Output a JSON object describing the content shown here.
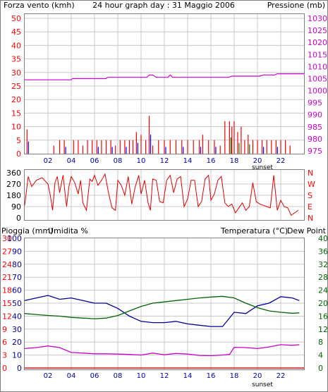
{
  "colors": {
    "wind": "#ff0000",
    "gust_fill": "#0000ff",
    "gust_green": "#008000",
    "pressure": "#cc00cc",
    "direction": "#dd0000",
    "rain": "#ff0000",
    "humidity": "#000099",
    "temperature": "#006600",
    "dewpoint": "#cc00cc",
    "grid": "#c8c8c8",
    "frame": "#808080",
    "label_red": "#ff0000",
    "label_magenta": "#cc00cc",
    "label_dark": "#000000",
    "label_navy": "#000099",
    "label_green": "#006600"
  },
  "chart_data": [
    {
      "type": "bar",
      "title": "24 hour graph day : 31 Maggio 2006",
      "left_label": "Forza vento (kmh)",
      "right_label": "Pressione (mb)",
      "x_ticks": [
        "02",
        "04",
        "06",
        "08",
        "10",
        "12",
        "14",
        "16",
        "18",
        "20",
        "22"
      ],
      "x_note": "sunset",
      "y_left_ticks": [
        50,
        45,
        40,
        35,
        30,
        25,
        20,
        15,
        10,
        5,
        0
      ],
      "y_right_ticks": [
        1030,
        1025,
        1020,
        1015,
        1010,
        1005,
        1000,
        995,
        990,
        985,
        980,
        975
      ],
      "ylim_left": [
        0,
        50
      ],
      "ylim_right": [
        975,
        1030
      ],
      "series": [
        {
          "name": "Forza vento",
          "x_hours": [
            0.2,
            2.5,
            3.0,
            3.4,
            4.2,
            4.6,
            5.0,
            5.4,
            5.8,
            6.2,
            6.6,
            7.0,
            7.4,
            7.8,
            8.2,
            8.6,
            9.0,
            9.3,
            9.6,
            10.0,
            10.4,
            10.7,
            11.0,
            11.5,
            12.0,
            12.5,
            13.0,
            13.5,
            14.0,
            14.5,
            15.0,
            15.3,
            15.8,
            16.3,
            16.8,
            17.2,
            17.6,
            17.8,
            18.0,
            18.3,
            18.6,
            18.9,
            19.2,
            19.6,
            20.0,
            20.4,
            20.8,
            21.2,
            21.6,
            22.0,
            22.4,
            22.8
          ],
          "values": [
            9,
            3,
            5,
            5,
            5,
            5,
            3,
            5,
            5,
            5,
            5,
            5,
            5,
            3,
            5,
            5,
            5,
            5,
            8,
            7,
            5,
            14,
            3,
            5,
            5,
            5,
            5,
            5,
            5,
            5,
            5,
            7,
            5,
            5,
            3,
            12,
            12,
            10,
            12,
            8,
            10,
            5,
            7,
            5,
            5,
            5,
            5,
            5,
            5,
            5,
            5,
            3
          ]
        },
        {
          "name": "Pressione",
          "x_hours": [
            0,
            4,
            4.1,
            7,
            7.1,
            10.5,
            10.7,
            11,
            11.3,
            12.3,
            12.5,
            12.7,
            17.5,
            17.8,
            20.2,
            20.5,
            21.5,
            21.7,
            24
          ],
          "values": [
            1004.5,
            1004.5,
            1005,
            1005,
            1005.5,
            1005.5,
            1006.5,
            1006.5,
            1005.5,
            1005.5,
            1006.5,
            1005.5,
            1005.5,
            1006,
            1006,
            1006.5,
            1006.5,
            1007,
            1007
          ]
        }
      ]
    },
    {
      "type": "line",
      "y_left_ticks": [
        360,
        270,
        180,
        90,
        0
      ],
      "y_right_ticks": [
        "N",
        "W",
        "S",
        "E",
        "N"
      ],
      "ylim": [
        0,
        360
      ],
      "series": [
        {
          "name": "Direzione vento",
          "x_hours": [
            0,
            0.3,
            0.6,
            1.0,
            1.5,
            2.0,
            2.2,
            2.4,
            2.6,
            2.8,
            3.0,
            3.3,
            3.6,
            3.8,
            4.0,
            4.3,
            4.6,
            4.8,
            5.0,
            5.3,
            5.6,
            5.8,
            6.0,
            6.3,
            6.6,
            6.9,
            7.2,
            7.5,
            7.8,
            8.0,
            8.3,
            8.6,
            8.9,
            9.2,
            9.5,
            9.8,
            10.0,
            10.3,
            10.6,
            10.8,
            11.0,
            11.3,
            11.6,
            11.9,
            12.2,
            12.5,
            12.8,
            13.1,
            13.4,
            13.7,
            14.0,
            14.3,
            14.6,
            14.9,
            15.2,
            15.5,
            15.8,
            16.0,
            16.3,
            16.6,
            16.9,
            17.2,
            17.5,
            17.8,
            18.1,
            18.4,
            18.7,
            19.0,
            19.3,
            19.6,
            19.9,
            20.2,
            20.5,
            20.8,
            21.1,
            21.4,
            21.7,
            22.0,
            22.3,
            22.6,
            22.9,
            23.2,
            23.5
          ],
          "values": [
            100,
            330,
            250,
            300,
            320,
            270,
            180,
            60,
            280,
            330,
            200,
            340,
            90,
            250,
            330,
            280,
            190,
            300,
            120,
            60,
            310,
            290,
            340,
            260,
            300,
            350,
            200,
            80,
            60,
            300,
            260,
            180,
            330,
            110,
            250,
            340,
            190,
            300,
            120,
            60,
            310,
            300,
            130,
            120,
            300,
            340,
            200,
            310,
            330,
            90,
            150,
            300,
            300,
            90,
            130,
            310,
            340,
            140,
            190,
            300,
            330,
            120,
            90,
            110,
            40,
            80,
            120,
            60,
            90,
            280,
            130,
            110,
            100,
            90,
            80,
            340,
            60,
            140,
            90,
            80,
            20,
            40,
            60
          ]
        }
      ]
    },
    {
      "type": "line",
      "left_label_1": "Pioggia (mm)",
      "left_label_2": "Umidita %",
      "right_label_1": "Temperatura (°C)",
      "right_label_2": "Dew Point",
      "x_ticks": [
        "02",
        "04",
        "06",
        "08",
        "10",
        "12",
        "14",
        "16",
        "18",
        "20",
        "22"
      ],
      "x_note": "sunset",
      "y_rain_ticks": [
        30,
        27,
        24,
        21,
        18,
        15,
        12,
        9,
        6,
        3,
        0
      ],
      "y_humidity_ticks": [
        100,
        90,
        80,
        70,
        60,
        50,
        40,
        30,
        20,
        10,
        0
      ],
      "y_temp_ticks": [
        40,
        36,
        32,
        28,
        24,
        20,
        16,
        12,
        8,
        4,
        0
      ],
      "ylim_humidity": [
        0,
        100
      ],
      "ylim_temp": [
        0,
        40
      ],
      "series": [
        {
          "name": "Umidita",
          "x_hours": [
            0,
            1,
            2,
            3,
            4,
            5,
            6,
            7,
            8,
            9,
            10,
            11,
            12,
            13,
            14,
            15,
            16,
            17,
            18,
            19,
            20,
            21,
            22,
            23,
            23.6
          ],
          "values": [
            52,
            54,
            56,
            53,
            54,
            52,
            50,
            50,
            46,
            40,
            36,
            35,
            35,
            36,
            34,
            33,
            32,
            32,
            43,
            42,
            48,
            50,
            55,
            54,
            52
          ]
        },
        {
          "name": "Temperatura",
          "x_hours": [
            0,
            1,
            2,
            3,
            4,
            5,
            6,
            7,
            8,
            9,
            10,
            11,
            12,
            13,
            14,
            15,
            16,
            17,
            18,
            19,
            20,
            21,
            22,
            23,
            23.6
          ],
          "values": [
            16.8,
            16.5,
            16.2,
            16.0,
            15.6,
            15.4,
            15.2,
            15.4,
            16.2,
            17.6,
            19.0,
            20.0,
            20.4,
            20.8,
            21.2,
            21.6,
            21.9,
            22.1,
            21.6,
            20.0,
            18.6,
            17.6,
            17.2,
            16.9,
            17.0
          ]
        },
        {
          "name": "Dew Point",
          "x_hours": [
            0,
            1,
            2,
            3,
            4,
            5,
            6,
            7,
            8,
            9,
            10,
            11,
            12,
            13,
            14,
            15,
            16,
            17,
            17.6,
            18,
            19,
            20,
            21,
            22,
            23,
            23.6
          ],
          "values": [
            6.0,
            6.3,
            6.8,
            6.3,
            4.8,
            4.6,
            4.4,
            4.4,
            4.3,
            4.2,
            4.0,
            4.6,
            4.1,
            4.5,
            4.3,
            3.9,
            3.8,
            4.0,
            4.2,
            6.4,
            6.3,
            6.0,
            6.5,
            7.2,
            7.0,
            7.2
          ]
        },
        {
          "name": "Pioggia",
          "x_hours": [
            0,
            24
          ],
          "values": [
            0,
            0
          ]
        }
      ]
    }
  ]
}
